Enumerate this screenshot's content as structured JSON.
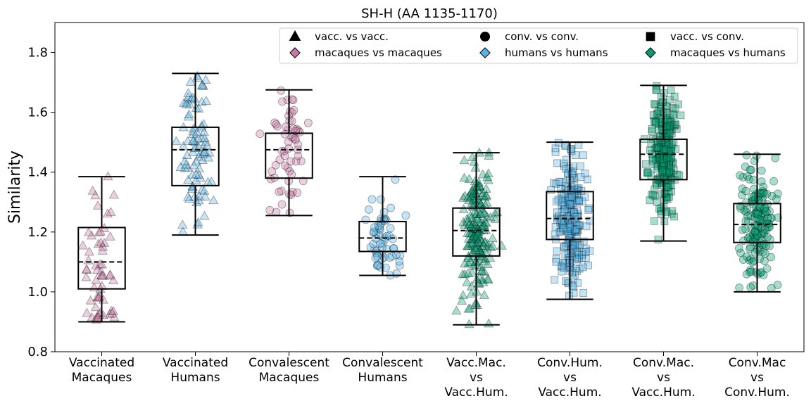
{
  "chart_data": {
    "type": "box",
    "title": "SH-H (AA 1135-1170)",
    "xlabel": "",
    "ylabel": "Similarity",
    "ylim": [
      0.8,
      1.9
    ],
    "yticks": [
      0.8,
      1.0,
      1.2,
      1.4,
      1.6,
      1.8
    ],
    "grid": false,
    "legend_position": "top-right",
    "colors": {
      "macaques": "#cc79a7",
      "humans": "#56b4e9",
      "mixed": "#009e73",
      "box": "#000000"
    },
    "legend": [
      {
        "label": "vacc. vs vacc.",
        "marker": "triangle",
        "color": "#000000"
      },
      {
        "label": "conv. vs conv.",
        "marker": "circle",
        "color": "#000000"
      },
      {
        "label": "vacc. vs conv.",
        "marker": "square",
        "color": "#000000"
      },
      {
        "label": "macaques vs macaques",
        "marker": "diamond",
        "color": "#cc79a7"
      },
      {
        "label": "humans vs humans",
        "marker": "diamond",
        "color": "#56b4e9"
      },
      {
        "label": "macaques vs humans",
        "marker": "diamond",
        "color": "#009e73"
      }
    ],
    "categories": [
      {
        "label": [
          "Vaccinated",
          "Macaques"
        ],
        "marker": "triangle",
        "color": "#cc79a7",
        "n": 60,
        "spread": 0.3,
        "box": {
          "whisker_low": 0.9,
          "q1": 1.01,
          "median": 1.1,
          "q3": 1.215,
          "whisker_high": 1.385
        }
      },
      {
        "label": [
          "Vaccinated",
          "Humans"
        ],
        "marker": "triangle",
        "color": "#56b4e9",
        "n": 90,
        "spread": 0.3,
        "box": {
          "whisker_low": 1.19,
          "q1": 1.355,
          "median": 1.475,
          "q3": 1.55,
          "whisker_high": 1.73
        }
      },
      {
        "label": [
          "Convalescent",
          "Macaques"
        ],
        "marker": "circle",
        "color": "#cc79a7",
        "n": 60,
        "spread": 0.3,
        "box": {
          "whisker_low": 1.255,
          "q1": 1.38,
          "median": 1.475,
          "q3": 1.53,
          "whisker_high": 1.675
        }
      },
      {
        "label": [
          "Convalescent",
          "Humans"
        ],
        "marker": "circle",
        "color": "#56b4e9",
        "n": 60,
        "spread": 0.3,
        "box": {
          "whisker_low": 1.055,
          "q1": 1.135,
          "median": 1.18,
          "q3": 1.235,
          "whisker_high": 1.385
        }
      },
      {
        "label": [
          "Vacc.Mac.",
          "vs",
          "Vacc.Hum."
        ],
        "marker": "triangle",
        "color": "#009e73",
        "n": 200,
        "spread": 0.28,
        "box": {
          "whisker_low": 0.89,
          "q1": 1.12,
          "median": 1.205,
          "q3": 1.28,
          "whisker_high": 1.465
        }
      },
      {
        "label": [
          "Conv.Hum.",
          "vs",
          "Vacc.Hum."
        ],
        "marker": "square",
        "color": "#56b4e9",
        "n": 250,
        "spread": 0.26,
        "box": {
          "whisker_low": 0.975,
          "q1": 1.175,
          "median": 1.245,
          "q3": 1.335,
          "whisker_high": 1.5
        }
      },
      {
        "label": [
          "Conv.Mac.",
          "vs",
          "Vacc.Hum."
        ],
        "marker": "square",
        "color": "#009e73",
        "n": 250,
        "spread": 0.26,
        "box": {
          "whisker_low": 1.17,
          "q1": 1.375,
          "median": 1.46,
          "q3": 1.51,
          "whisker_high": 1.69
        }
      },
      {
        "label": [
          "Conv.Mac",
          "vs",
          "Conv.Hum."
        ],
        "marker": "circle",
        "color": "#009e73",
        "n": 160,
        "spread": 0.3,
        "box": {
          "whisker_low": 1.0,
          "q1": 1.165,
          "median": 1.225,
          "q3": 1.295,
          "whisker_high": 1.46
        }
      }
    ]
  }
}
